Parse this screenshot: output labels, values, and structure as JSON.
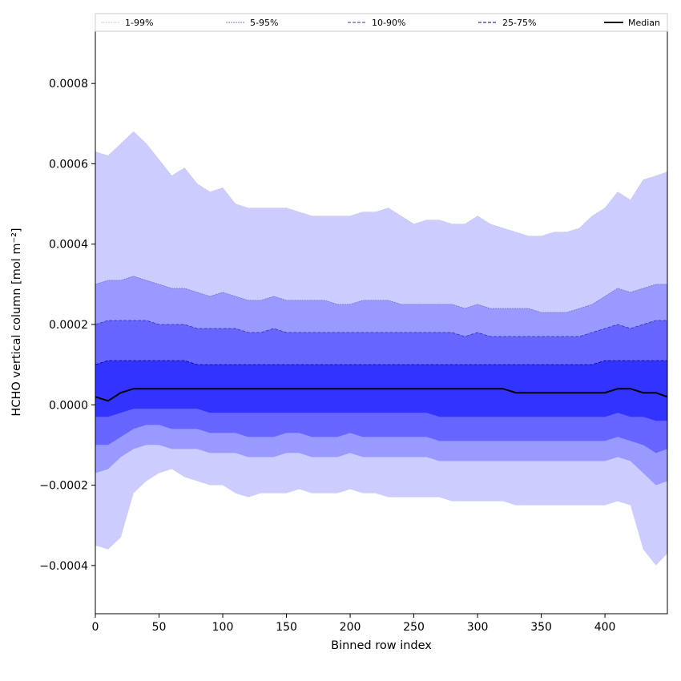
{
  "chart_data": {
    "type": "area",
    "xlabel": "Binned row index",
    "ylabel": "HCHO vertical column [mol m⁻²]",
    "xlim": [
      0,
      449
    ],
    "ylim": [
      -0.00052,
      0.00093
    ],
    "x_ticks": [
      0,
      50,
      100,
      150,
      200,
      250,
      300,
      350,
      400
    ],
    "x_tick_labels": [
      "0",
      "50",
      "100",
      "150",
      "200",
      "250",
      "300",
      "350",
      "400"
    ],
    "y_ticks": [
      -0.0004,
      -0.0002,
      0.0,
      0.0002,
      0.0004,
      0.0006,
      0.0008
    ],
    "y_tick_labels": [
      "−0.0004",
      "−0.0002",
      "0.0000",
      "0.0002",
      "0.0004",
      "0.0006",
      "0.0008"
    ],
    "legend_position": "top, spanning full width",
    "grid": false,
    "x": [
      0,
      10,
      20,
      30,
      40,
      50,
      60,
      70,
      80,
      90,
      100,
      110,
      120,
      130,
      140,
      150,
      160,
      170,
      180,
      190,
      200,
      210,
      220,
      230,
      240,
      250,
      260,
      270,
      280,
      290,
      300,
      310,
      320,
      330,
      340,
      350,
      360,
      370,
      380,
      390,
      400,
      410,
      420,
      430,
      440,
      449
    ],
    "bands": [
      {
        "name": "1-99%",
        "color": "#ccccff",
        "line_color": "#c8c8e6",
        "lower": [
          -0.00035,
          -0.00036,
          -0.00033,
          -0.00022,
          -0.00019,
          -0.00017,
          -0.00016,
          -0.00018,
          -0.00019,
          -0.0002,
          -0.0002,
          -0.00022,
          -0.00023,
          -0.00022,
          -0.00022,
          -0.00022,
          -0.00021,
          -0.00022,
          -0.00022,
          -0.00022,
          -0.00021,
          -0.00022,
          -0.00022,
          -0.00023,
          -0.00023,
          -0.00023,
          -0.00023,
          -0.00023,
          -0.00024,
          -0.00024,
          -0.00024,
          -0.00024,
          -0.00024,
          -0.00025,
          -0.00025,
          -0.00025,
          -0.00025,
          -0.00025,
          -0.00025,
          -0.00025,
          -0.00025,
          -0.00024,
          -0.00025,
          -0.00036,
          -0.0004,
          -0.00037
        ],
        "upper": [
          0.00063,
          0.00062,
          0.00065,
          0.00068,
          0.00065,
          0.00061,
          0.00057,
          0.00059,
          0.00055,
          0.00053,
          0.00054,
          0.0005,
          0.00049,
          0.00049,
          0.00049,
          0.00049,
          0.00048,
          0.00047,
          0.00047,
          0.00047,
          0.00047,
          0.00048,
          0.00048,
          0.00049,
          0.00047,
          0.00045,
          0.00046,
          0.00046,
          0.00045,
          0.00045,
          0.00047,
          0.00045,
          0.00044,
          0.00043,
          0.00042,
          0.00042,
          0.00043,
          0.00043,
          0.00044,
          0.00047,
          0.00049,
          0.00053,
          0.00051,
          0.00056,
          0.00057,
          0.00058
        ]
      },
      {
        "name": "5-95%",
        "color": "#9999ff",
        "line_color": "#7777cc",
        "lower": [
          -0.00017,
          -0.00016,
          -0.00013,
          -0.00011,
          -0.0001,
          -0.0001,
          -0.00011,
          -0.00011,
          -0.00011,
          -0.00012,
          -0.00012,
          -0.00012,
          -0.00013,
          -0.00013,
          -0.00013,
          -0.00012,
          -0.00012,
          -0.00013,
          -0.00013,
          -0.00013,
          -0.00012,
          -0.00013,
          -0.00013,
          -0.00013,
          -0.00013,
          -0.00013,
          -0.00013,
          -0.00014,
          -0.00014,
          -0.00014,
          -0.00014,
          -0.00014,
          -0.00014,
          -0.00014,
          -0.00014,
          -0.00014,
          -0.00014,
          -0.00014,
          -0.00014,
          -0.00014,
          -0.00014,
          -0.00013,
          -0.00014,
          -0.00017,
          -0.0002,
          -0.00019
        ],
        "upper": [
          0.0003,
          0.00031,
          0.00031,
          0.00032,
          0.00031,
          0.0003,
          0.00029,
          0.00029,
          0.00028,
          0.00027,
          0.00028,
          0.00027,
          0.00026,
          0.00026,
          0.00027,
          0.00026,
          0.00026,
          0.00026,
          0.00026,
          0.00025,
          0.00025,
          0.00026,
          0.00026,
          0.00026,
          0.00025,
          0.00025,
          0.00025,
          0.00025,
          0.00025,
          0.00024,
          0.00025,
          0.00024,
          0.00024,
          0.00024,
          0.00024,
          0.00023,
          0.00023,
          0.00023,
          0.00024,
          0.00025,
          0.00027,
          0.00029,
          0.00028,
          0.00029,
          0.0003,
          0.0003
        ]
      },
      {
        "name": "10-90%",
        "color": "#6666ff",
        "line_color": "#3333aa",
        "lower": [
          -0.0001,
          -0.0001,
          -8e-05,
          -6e-05,
          -5e-05,
          -5e-05,
          -6e-05,
          -6e-05,
          -6e-05,
          -7e-05,
          -7e-05,
          -7e-05,
          -8e-05,
          -8e-05,
          -8e-05,
          -7e-05,
          -7e-05,
          -8e-05,
          -8e-05,
          -8e-05,
          -7e-05,
          -8e-05,
          -8e-05,
          -8e-05,
          -8e-05,
          -8e-05,
          -8e-05,
          -9e-05,
          -9e-05,
          -9e-05,
          -9e-05,
          -9e-05,
          -9e-05,
          -9e-05,
          -9e-05,
          -9e-05,
          -9e-05,
          -9e-05,
          -9e-05,
          -9e-05,
          -9e-05,
          -8e-05,
          -9e-05,
          -0.0001,
          -0.00012,
          -0.00011
        ],
        "upper": [
          0.0002,
          0.00021,
          0.00021,
          0.00021,
          0.00021,
          0.0002,
          0.0002,
          0.0002,
          0.00019,
          0.00019,
          0.00019,
          0.00019,
          0.00018,
          0.00018,
          0.00019,
          0.00018,
          0.00018,
          0.00018,
          0.00018,
          0.00018,
          0.00018,
          0.00018,
          0.00018,
          0.00018,
          0.00018,
          0.00018,
          0.00018,
          0.00018,
          0.00018,
          0.00017,
          0.00018,
          0.00017,
          0.00017,
          0.00017,
          0.00017,
          0.00017,
          0.00017,
          0.00017,
          0.00017,
          0.00018,
          0.00019,
          0.0002,
          0.00019,
          0.0002,
          0.00021,
          0.00021
        ]
      },
      {
        "name": "25-75%",
        "color": "#3333ff",
        "line_color": "#000080",
        "lower": [
          -3e-05,
          -3e-05,
          -2e-05,
          -1e-05,
          -1e-05,
          -1e-05,
          -1e-05,
          -1e-05,
          -1e-05,
          -2e-05,
          -2e-05,
          -2e-05,
          -2e-05,
          -2e-05,
          -2e-05,
          -2e-05,
          -2e-05,
          -2e-05,
          -2e-05,
          -2e-05,
          -2e-05,
          -2e-05,
          -2e-05,
          -2e-05,
          -2e-05,
          -2e-05,
          -2e-05,
          -3e-05,
          -3e-05,
          -3e-05,
          -3e-05,
          -3e-05,
          -3e-05,
          -3e-05,
          -3e-05,
          -3e-05,
          -3e-05,
          -3e-05,
          -3e-05,
          -3e-05,
          -3e-05,
          -2e-05,
          -3e-05,
          -3e-05,
          -4e-05,
          -4e-05
        ],
        "upper": [
          0.0001,
          0.00011,
          0.00011,
          0.00011,
          0.00011,
          0.00011,
          0.00011,
          0.00011,
          0.0001,
          0.0001,
          0.0001,
          0.0001,
          0.0001,
          0.0001,
          0.0001,
          0.0001,
          0.0001,
          0.0001,
          0.0001,
          0.0001,
          0.0001,
          0.0001,
          0.0001,
          0.0001,
          0.0001,
          0.0001,
          0.0001,
          0.0001,
          0.0001,
          0.0001,
          0.0001,
          0.0001,
          0.0001,
          0.0001,
          0.0001,
          0.0001,
          0.0001,
          0.0001,
          0.0001,
          0.0001,
          0.00011,
          0.00011,
          0.00011,
          0.00011,
          0.00011,
          0.00011
        ]
      }
    ],
    "series": [
      {
        "name": "Median",
        "color": "#000000",
        "values": [
          2e-05,
          1e-05,
          3e-05,
          4e-05,
          4e-05,
          4e-05,
          4e-05,
          4e-05,
          4e-05,
          4e-05,
          4e-05,
          4e-05,
          4e-05,
          4e-05,
          4e-05,
          4e-05,
          4e-05,
          4e-05,
          4e-05,
          4e-05,
          4e-05,
          4e-05,
          4e-05,
          4e-05,
          4e-05,
          4e-05,
          4e-05,
          4e-05,
          4e-05,
          4e-05,
          4e-05,
          4e-05,
          4e-05,
          3e-05,
          3e-05,
          3e-05,
          3e-05,
          3e-05,
          3e-05,
          3e-05,
          3e-05,
          4e-05,
          4e-05,
          3e-05,
          3e-05,
          2e-05
        ]
      }
    ]
  }
}
